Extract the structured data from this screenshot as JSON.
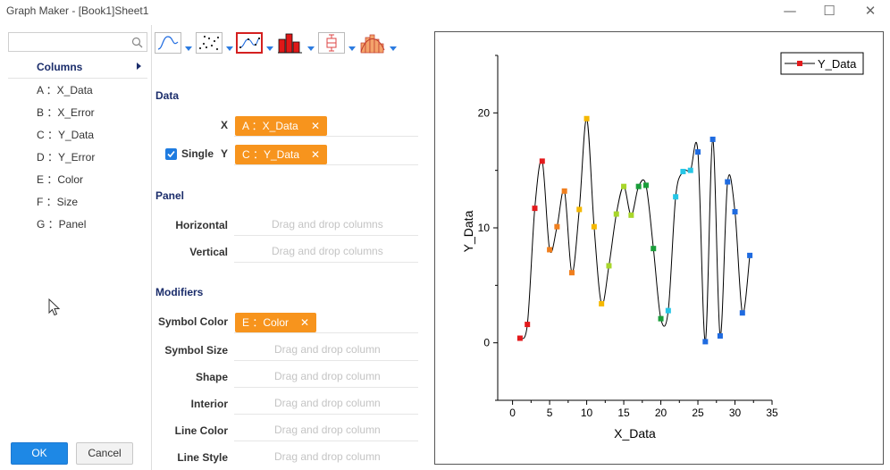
{
  "window": {
    "title": "Graph Maker - [Book1]Sheet1",
    "minimize_icon": "minimize-icon",
    "maximize_icon": "maximize-icon",
    "close_icon": "close-icon"
  },
  "left_panel": {
    "search": {
      "value": "",
      "placeholder": ""
    },
    "columns_header": "Columns",
    "columns": [
      "A ：X_Data",
      "B ：X_Error",
      "C ：Y_Data",
      "D ：Y_Error",
      "E ：Color",
      "F ：Size",
      "G ：Panel"
    ],
    "ok_label": "OK",
    "cancel_label": "Cancel"
  },
  "toolbar": {
    "buttons": [
      "line-plot-icon",
      "scatter-plot-icon",
      "line-symbol-plot-icon",
      "column-plot-icon",
      "box-plot-icon",
      "histogram-icon"
    ],
    "selected": "line-symbol-plot-icon"
  },
  "data_section": {
    "title": "Data",
    "x_label": "X",
    "x_value": "A ：X_Data",
    "single_label": "Single",
    "single_checked": true,
    "y_label": "Y",
    "y_value": "C ：Y_Data"
  },
  "panel_section": {
    "title": "Panel",
    "horizontal_label": "Horizontal",
    "horizontal_placeholder": "Drag and drop columns",
    "vertical_label": "Vertical",
    "vertical_placeholder": "Drag and drop columns"
  },
  "modifiers_section": {
    "title": "Modifiers",
    "symbol_color_label": "Symbol Color",
    "symbol_color_value": "E ：Color",
    "symbol_size_label": "Symbol Size",
    "symbol_size_placeholder": "Drag and drop column",
    "shape_label": "Shape",
    "shape_placeholder": "Drag and drop column",
    "interior_label": "Interior",
    "interior_placeholder": "Drag and drop column",
    "line_color_label": "Line Color",
    "line_color_placeholder": "Drag and drop column",
    "line_style_label": "Line Style",
    "line_style_placeholder": "Drag and drop column"
  },
  "colors": {
    "accent": "#1e88e5",
    "chip": "#f7941d",
    "section_title": "#1b2d6b"
  },
  "chart_data": {
    "type": "line",
    "title": "",
    "xlabel": "X_Data",
    "ylabel": "Y_Data",
    "xlim": [
      -2,
      35
    ],
    "ylim": [
      -5,
      25
    ],
    "x_ticks": [
      0,
      5,
      10,
      15,
      20,
      25,
      30,
      35
    ],
    "y_ticks": [
      0,
      10,
      20
    ],
    "grid": false,
    "legend": {
      "entries": [
        "Y_Data"
      ],
      "placement": "top-right"
    },
    "series": [
      {
        "name": "Y_Data",
        "line_color": "#000000",
        "x": [
          1,
          2,
          3,
          4,
          5,
          6,
          7,
          8,
          9,
          10,
          11,
          12,
          13,
          14,
          15,
          16,
          17,
          18,
          19,
          20,
          21,
          22,
          23,
          24,
          25,
          26,
          27,
          28,
          29,
          30,
          31,
          32
        ],
        "y": [
          0.4,
          1.6,
          11.7,
          15.8,
          8.1,
          10.1,
          13.2,
          6.1,
          11.6,
          19.5,
          10.1,
          3.4,
          6.7,
          11.2,
          13.6,
          11.1,
          13.6,
          13.7,
          8.2,
          2.1,
          2.8,
          12.7,
          14.9,
          15.0,
          16.6,
          0.1,
          17.7,
          0.6,
          14.0,
          11.4,
          2.6,
          7.6
        ],
        "colors": [
          "#e31a1c",
          "#e31a1c",
          "#e31a1c",
          "#e31a1c",
          "#f07f1e",
          "#f07f1e",
          "#f07f1e",
          "#f07f1e",
          "#f5b800",
          "#f5b800",
          "#f5b800",
          "#f5b800",
          "#a8d62b",
          "#a8d62b",
          "#a8d62b",
          "#a8d62b",
          "#1a9e3a",
          "#1a9e3a",
          "#1a9e3a",
          "#1a9e3a",
          "#25c6e6",
          "#25c6e6",
          "#25c6e6",
          "#25c6e6",
          "#1f6be0",
          "#1f6be0",
          "#1f6be0",
          "#1f6be0",
          "#1f6be0",
          "#1f6be0",
          "#1f6be0",
          "#1f6be0"
        ]
      }
    ]
  }
}
